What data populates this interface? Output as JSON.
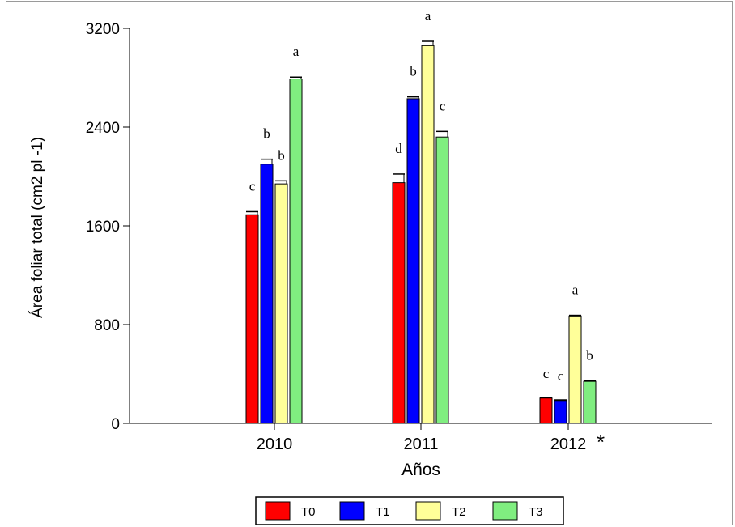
{
  "chart_data": {
    "type": "bar",
    "title": "",
    "xlabel": "Años",
    "ylabel": "Área foliar total (cm2 pl -1)",
    "ylim": [
      0,
      3200
    ],
    "yticks": [
      "0",
      "800",
      "1600",
      "2400",
      "3200"
    ],
    "categories": [
      "2010",
      "2011",
      "2012"
    ],
    "category_marks": [
      "",
      "",
      "*"
    ],
    "legend_position": "bottom",
    "grid": false,
    "series": [
      {
        "name": "T0",
        "color": "#ff0000",
        "values": [
          1690,
          1950,
          205
        ],
        "errors": [
          25,
          70,
          5
        ],
        "letters": [
          "c",
          "d",
          "c"
        ]
      },
      {
        "name": "T1",
        "color": "#0000ff",
        "values": [
          2100,
          2630,
          185
        ],
        "errors": [
          40,
          15,
          5
        ],
        "letters": [
          "b",
          "b",
          "c"
        ]
      },
      {
        "name": "T2",
        "color": "#ffff99",
        "values": [
          1940,
          3060,
          870
        ],
        "errors": [
          25,
          35,
          5
        ],
        "letters": [
          "b",
          "a",
          "a"
        ]
      },
      {
        "name": "T3",
        "color": "#80ee80",
        "values": [
          2790,
          2320,
          340
        ],
        "errors": [
          15,
          45,
          5
        ],
        "letters": [
          "a",
          "c",
          "b"
        ]
      }
    ]
  }
}
